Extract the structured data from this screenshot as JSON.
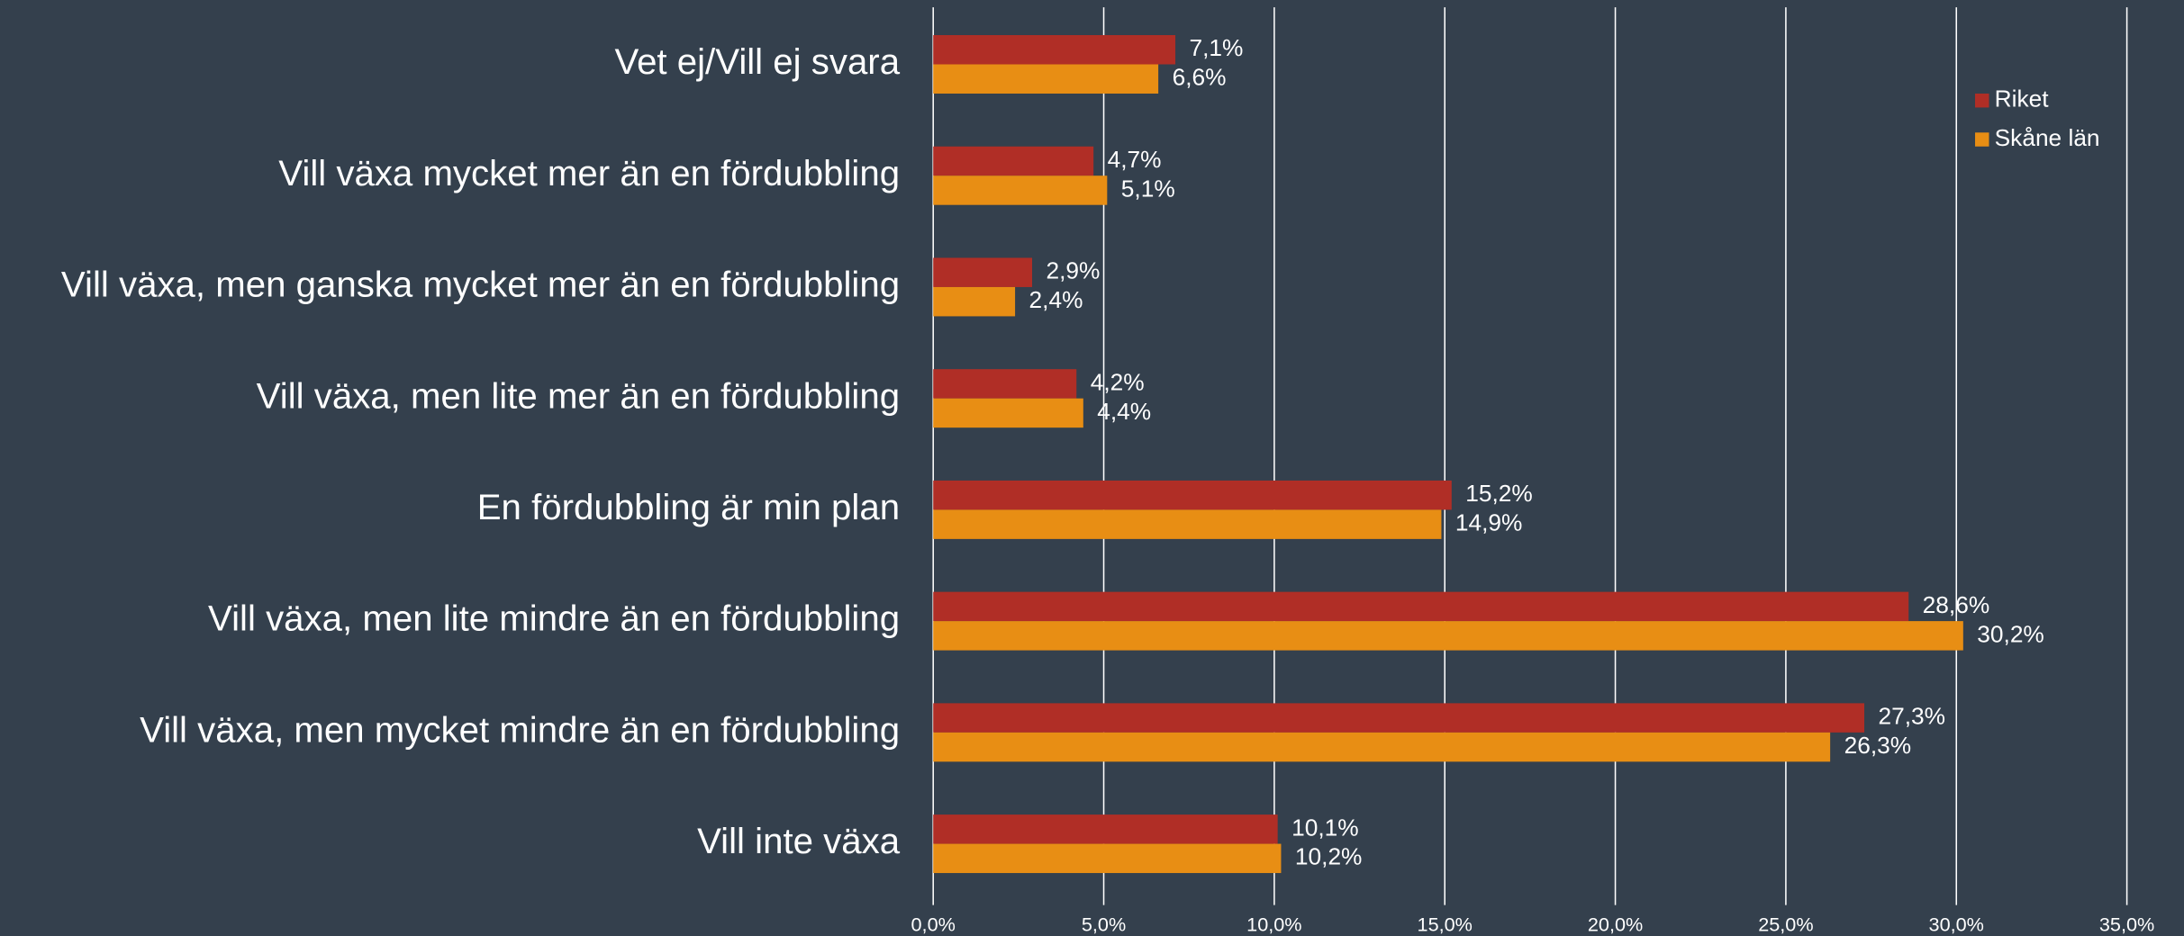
{
  "chart_data": {
    "type": "barh",
    "categories": [
      "Vet ej/Vill ej svara",
      "Vill växa mycket mer än en fördubbling",
      "Vill växa, men ganska mycket mer än en fördubbling",
      "Vill växa, men lite mer än en fördubbling",
      "En fördubbling är min plan",
      "Vill växa, men lite mindre än en fördubbling",
      "Vill växa, men mycket mindre än en fördubbling",
      "Vill inte växa"
    ],
    "series": [
      {
        "name": "Riket",
        "color": "#b02e26",
        "values": [
          7.1,
          4.7,
          2.9,
          4.2,
          15.2,
          28.6,
          27.3,
          10.1
        ],
        "value_labels": [
          "7,1%",
          "4,7%",
          "2,9%",
          "4,2%",
          "15,2%",
          "28,6%",
          "27,3%",
          "10,1%"
        ]
      },
      {
        "name": "Skåne län",
        "color": "#e88e14",
        "values": [
          6.6,
          5.1,
          2.4,
          4.4,
          14.9,
          30.2,
          26.3,
          10.2
        ],
        "value_labels": [
          "6,6%",
          "5,1%",
          "2,4%",
          "4,4%",
          "14,9%",
          "30,2%",
          "26,3%",
          "10,2%"
        ]
      }
    ],
    "xlim": [
      0,
      35
    ],
    "xticks": [
      {
        "value": 0,
        "label": "0,0%"
      },
      {
        "value": 5,
        "label": "5,0%"
      },
      {
        "value": 10,
        "label": "10,0%"
      },
      {
        "value": 15,
        "label": "15,0%"
      },
      {
        "value": 20,
        "label": "20,0%"
      },
      {
        "value": 25,
        "label": "25,0%"
      },
      {
        "value": 30,
        "label": "30,0%"
      },
      {
        "value": 35,
        "label": "35,0%"
      }
    ],
    "grid": true,
    "legend_position": "top-right"
  }
}
